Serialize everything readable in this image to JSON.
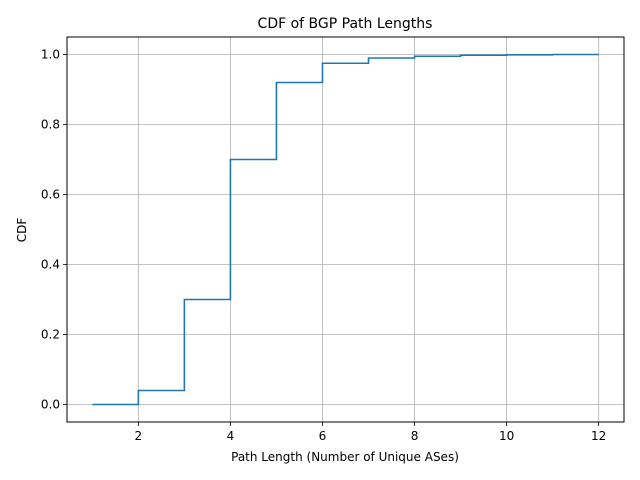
{
  "chart_data": {
    "type": "line",
    "step": "post",
    "title": "CDF of BGP Path Lengths",
    "xlabel": "Path Length (Number of Unique ASes)",
    "ylabel": "CDF",
    "xlim": [
      0.45,
      12.55
    ],
    "ylim": [
      -0.05,
      1.05
    ],
    "xticks": [
      2,
      4,
      6,
      8,
      10,
      12
    ],
    "yticks": [
      0.0,
      0.2,
      0.4,
      0.6,
      0.8,
      1.0
    ],
    "xtick_labels": [
      "2",
      "4",
      "6",
      "8",
      "10",
      "12"
    ],
    "ytick_labels": [
      "0.0",
      "0.2",
      "0.4",
      "0.6",
      "0.8",
      "1.0"
    ],
    "grid": true,
    "series": [
      {
        "color": "#1f77b4",
        "x": [
          1,
          2,
          3,
          4,
          5,
          6,
          7,
          8,
          9,
          10,
          11,
          12
        ],
        "y": [
          0.0,
          0.04,
          0.3,
          0.7,
          0.92,
          0.975,
          0.99,
          0.995,
          0.998,
          0.999,
          1.0,
          1.0
        ]
      }
    ]
  }
}
